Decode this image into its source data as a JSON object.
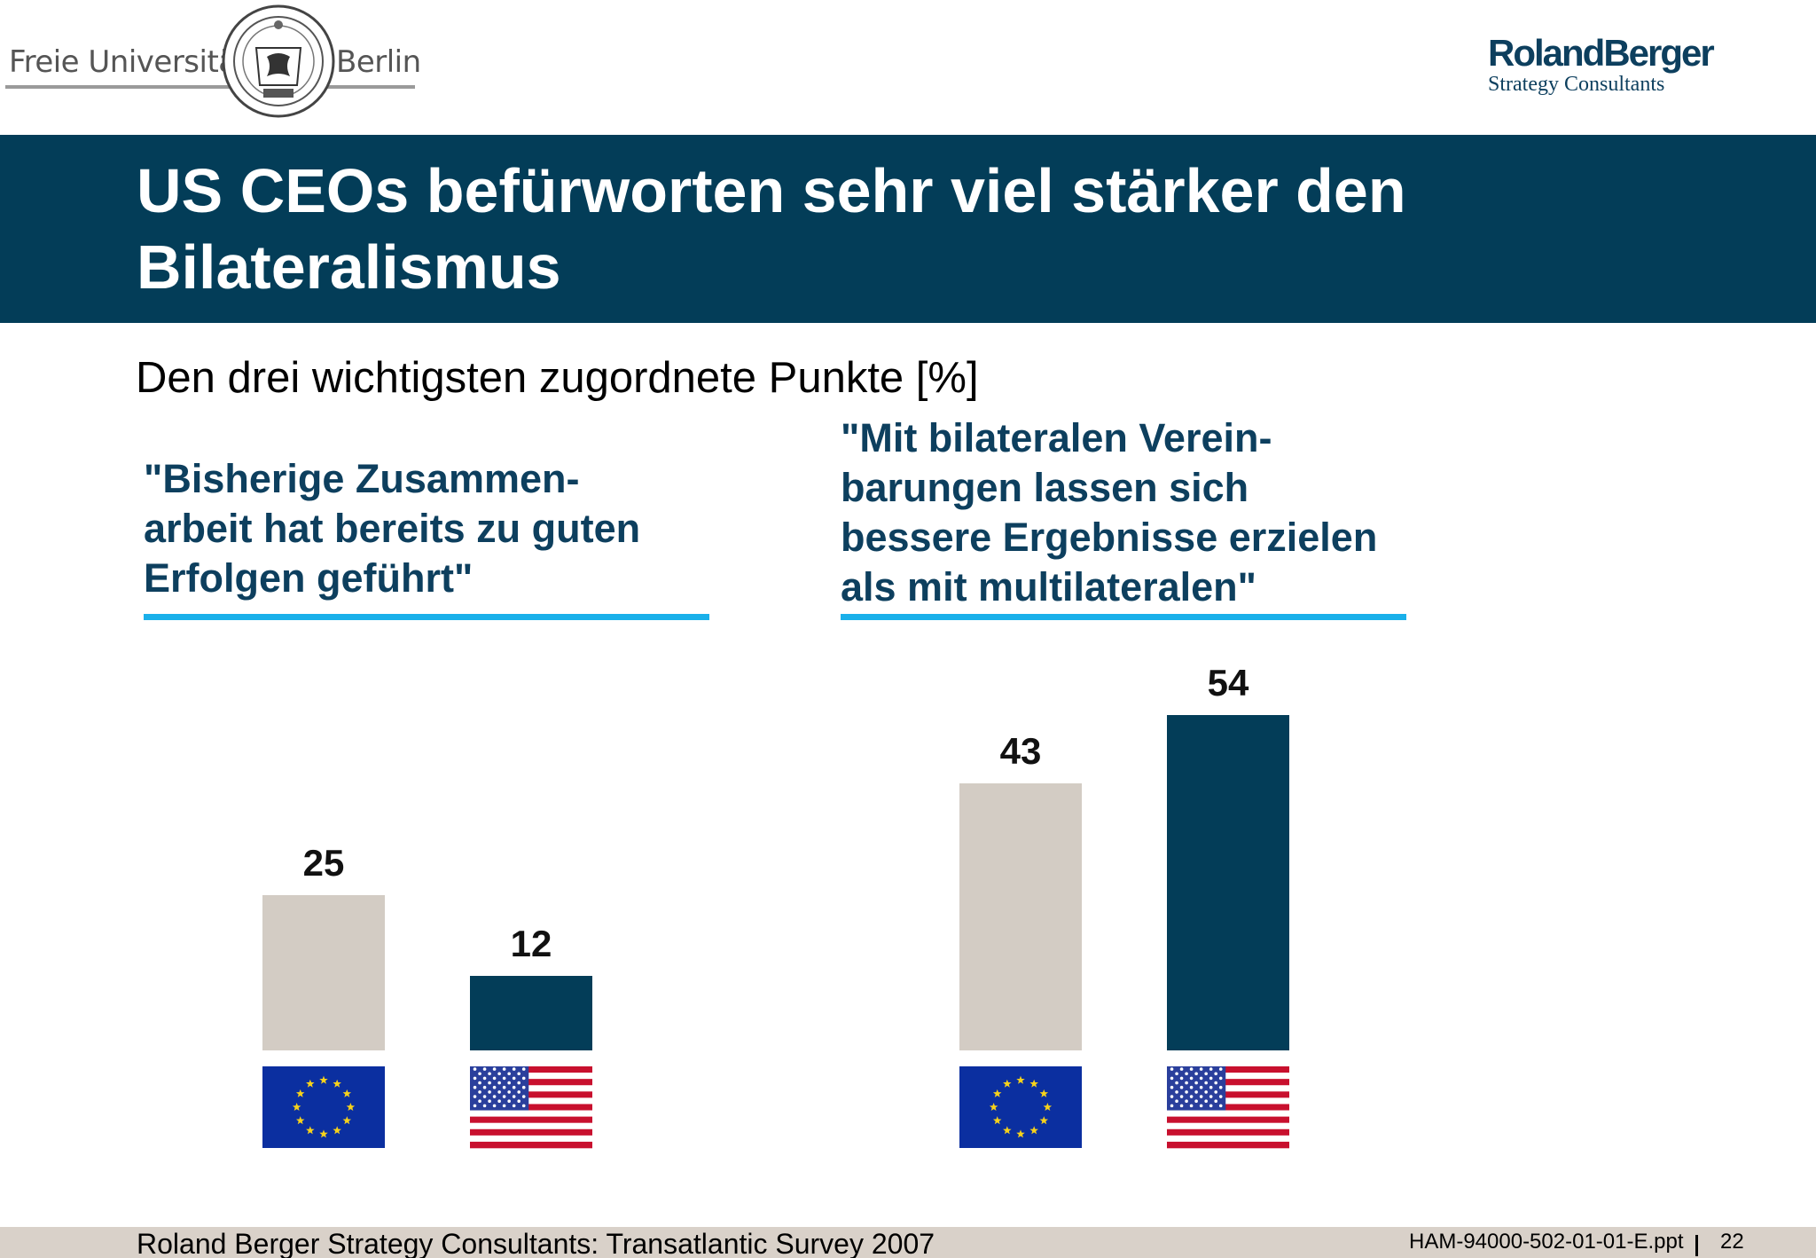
{
  "header": {
    "fu_logo": {
      "word_left": "Freie Universität",
      "word_right": "Berlin",
      "icon": "fu-berlin-seal-icon"
    },
    "rb_logo": {
      "name": "RolandBerger",
      "tagline": "Strategy Consultants"
    }
  },
  "title": "US CEOs befürworten sehr viel stärker den Bilateralismus",
  "subtitle": "Den drei wichtigsten zugordnete Punkte [%]",
  "colors": {
    "title_band": "#033d58",
    "eu_bar": "#d3ccc4",
    "us_bar": "#033d58",
    "accent_line": "#1ab0ea",
    "quote_text": "#0d3f5e",
    "footer_band": "#d9d1c9"
  },
  "chart_data": [
    {
      "type": "bar",
      "title": "\"Bisherige Zusammen-\narbeit hat bereits zu guten\nErfolgen geführt\"",
      "categories": [
        "EU",
        "US"
      ],
      "category_icons": [
        "eu-flag-icon",
        "us-flag-icon"
      ],
      "values": [
        25,
        12
      ],
      "value_labels": [
        "25",
        "12"
      ],
      "ylim": [
        0,
        60
      ],
      "grid": false,
      "legend": "none"
    },
    {
      "type": "bar",
      "title": "\"Mit bilateralen Verein-\nbarungen lassen sich\nbessere Ergebnisse erzielen\nals mit multilateralen\"",
      "categories": [
        "EU",
        "US"
      ],
      "category_icons": [
        "eu-flag-icon",
        "us-flag-icon"
      ],
      "values": [
        43,
        54
      ],
      "value_labels": [
        "43",
        "54"
      ],
      "ylim": [
        0,
        60
      ],
      "grid": false,
      "legend": "none"
    }
  ],
  "footer": {
    "source": "Roland Berger Strategy Consultants: Transatlantic Survey 2007",
    "file": "HAM-94000-502-01-01-E.ppt",
    "page": "22"
  }
}
